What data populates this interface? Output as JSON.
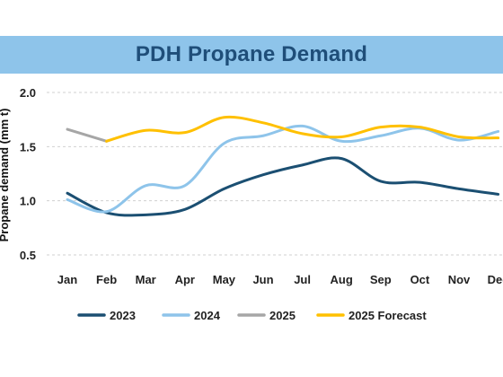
{
  "chart_data": {
    "type": "line",
    "title": "PDH Propane Demand",
    "ylabel": "Propane demand (mm t)",
    "xlabel": "",
    "categories": [
      "Jan",
      "Feb",
      "Mar",
      "Apr",
      "May",
      "Jun",
      "Jul",
      "Aug",
      "Sep",
      "Oct",
      "Nov",
      "Dec"
    ],
    "ylim": [
      0.5,
      2.0
    ],
    "yticks": [
      "0.5",
      "1.0",
      "1.5",
      "2.0"
    ],
    "grid": "horizontal-dashed",
    "legend": "bottom",
    "series": [
      {
        "name": "2023",
        "color": "#1b4f72",
        "values": [
          1.07,
          0.89,
          0.87,
          0.92,
          1.11,
          1.24,
          1.33,
          1.39,
          1.18,
          1.17,
          1.11,
          1.06
        ]
      },
      {
        "name": "2024",
        "color": "#8ec4ea",
        "values": [
          1.01,
          0.9,
          1.14,
          1.14,
          1.53,
          1.6,
          1.69,
          1.55,
          1.6,
          1.67,
          1.56,
          1.64
        ]
      },
      {
        "name": "2025",
        "color": "#a6a6a6",
        "values": [
          1.66,
          1.55,
          null,
          null,
          null,
          null,
          null,
          null,
          null,
          null,
          null,
          null
        ]
      },
      {
        "name": "2025 Forecast",
        "color": "#ffc000",
        "values": [
          null,
          1.55,
          1.65,
          1.63,
          1.77,
          1.72,
          1.62,
          1.59,
          1.68,
          1.68,
          1.59,
          1.58
        ]
      }
    ]
  }
}
